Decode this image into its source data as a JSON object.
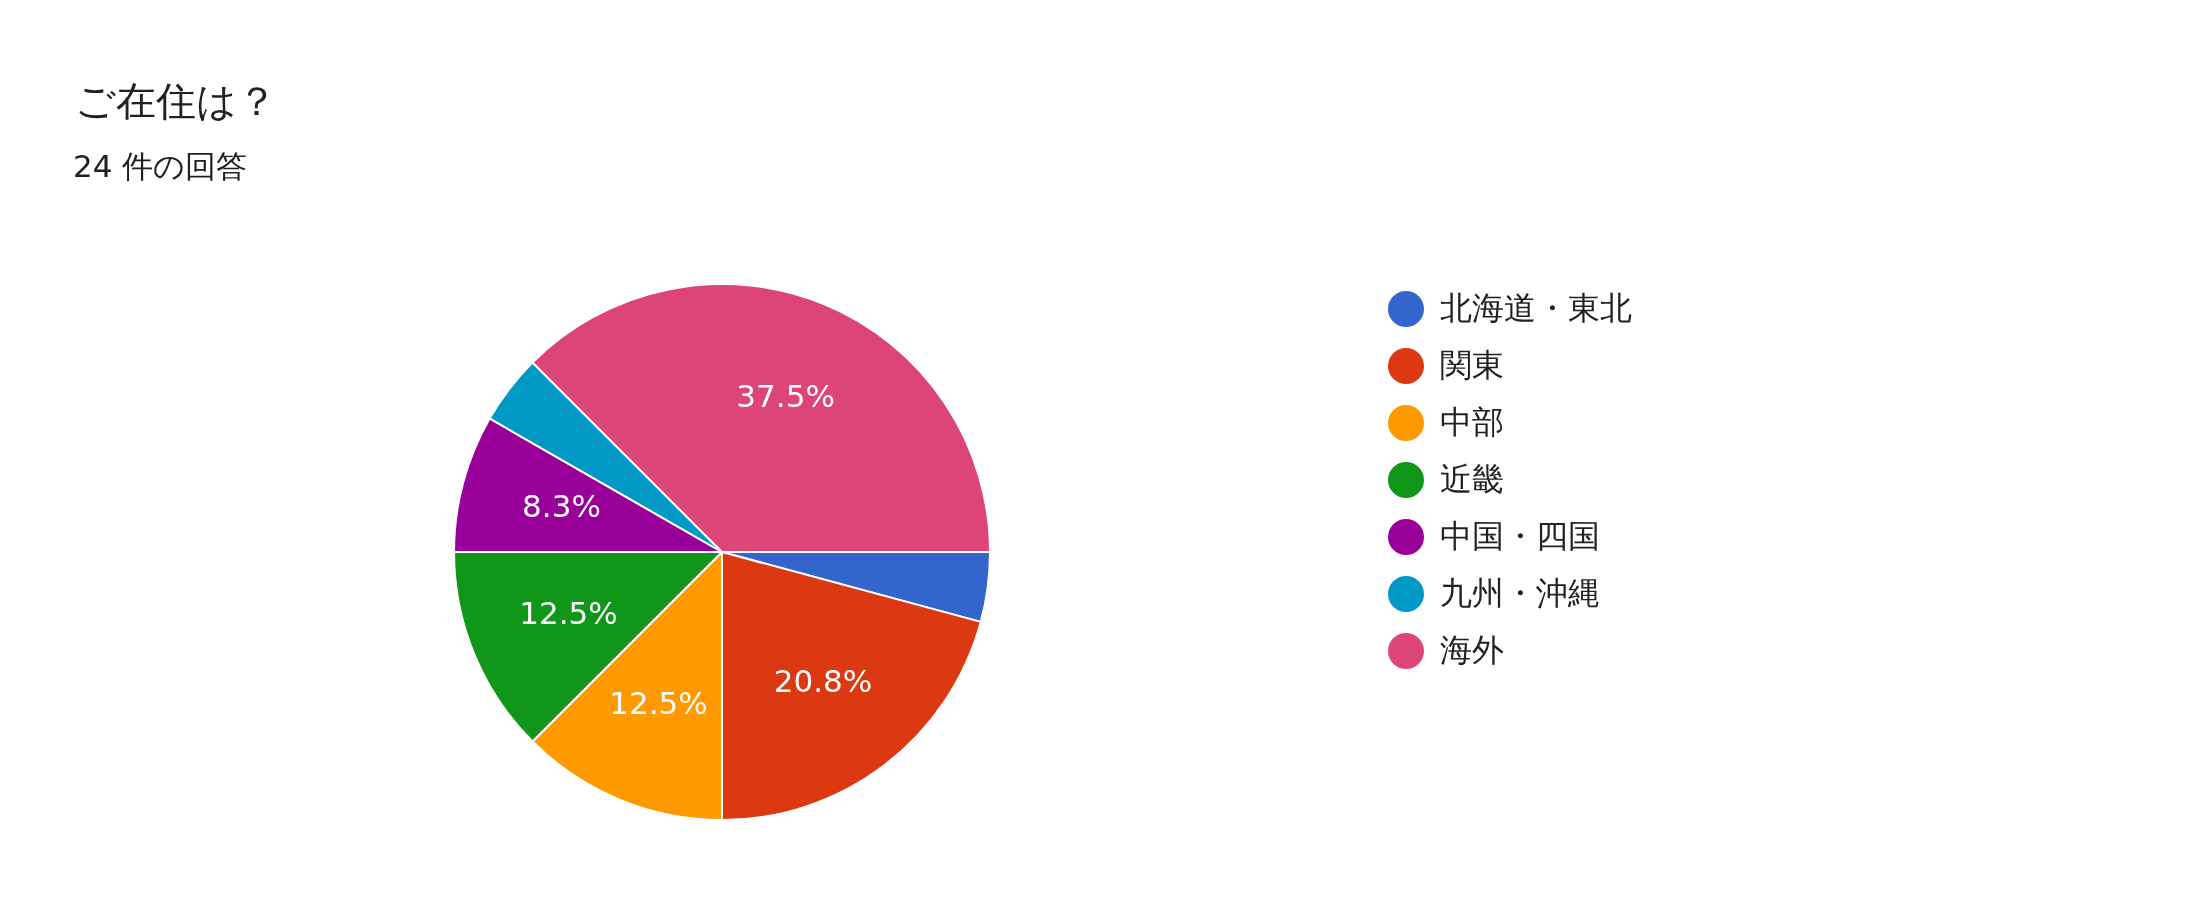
{
  "chart_data": {
    "type": "pie",
    "title": "ご在住は？",
    "subtitle": "24 件の回答",
    "categories": [
      "北海道・東北",
      "関東",
      "中部",
      "近畿",
      "中国・四国",
      "九州・沖縄",
      "海外"
    ],
    "values": [
      4.2,
      20.8,
      12.5,
      12.5,
      8.3,
      4.2,
      37.5
    ],
    "value_labels": [
      null,
      "20.8%",
      "12.5%",
      "12.5%",
      "8.3%",
      null,
      "37.5%"
    ],
    "colors": [
      "#3366cc",
      "#dc3912",
      "#ff9900",
      "#109618",
      "#990099",
      "#0099c6",
      "#dd4477"
    ],
    "legend": "right"
  }
}
